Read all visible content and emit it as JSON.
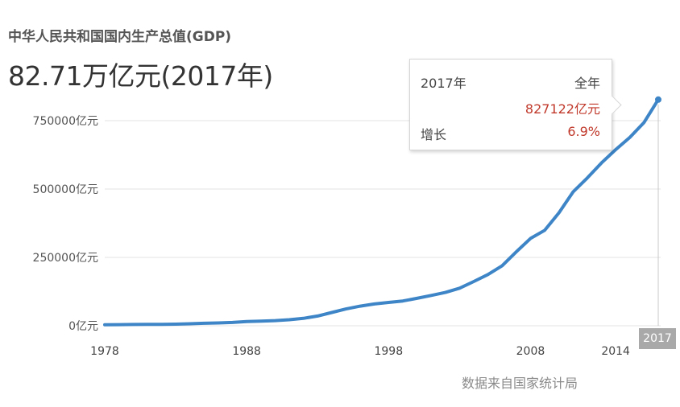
{
  "header": {
    "subtitle": "中华人民共和国国内生产总值(GDP)",
    "headline": "82.71万亿元(2017年)"
  },
  "tooltip": {
    "year": "2017年",
    "period": "全年",
    "value": "827122亿元",
    "growth_label": "增长",
    "growth": "6.9%"
  },
  "highlight_year": "2017",
  "source": "数据来自国家统计局",
  "colors": {
    "line": "#3d85c6",
    "grid": "#e3e3e3",
    "highlight_value": "#c0392b",
    "badge": "#a9a9a9"
  },
  "chart_data": {
    "type": "line",
    "title": "中华人民共和国国内生产总值(GDP)",
    "xlabel": "",
    "ylabel": "",
    "y_unit": "亿元",
    "ylim": [
      0,
      750000
    ],
    "yticks": [
      0,
      250000,
      500000,
      750000
    ],
    "ytick_labels": [
      "0亿元",
      "250000亿元",
      "500000亿元",
      "750000亿元"
    ],
    "xlim": [
      1978,
      2017
    ],
    "xticks": [
      1978,
      1988,
      1998,
      2008,
      2014
    ],
    "grid": true,
    "legend": "none",
    "series": [
      {
        "x": [
          1978,
          1979,
          1980,
          1981,
          1982,
          1983,
          1984,
          1985,
          1986,
          1987,
          1988,
          1989,
          1990,
          1991,
          1992,
          1993,
          1994,
          1995,
          1996,
          1997,
          1998,
          1999,
          2000,
          2001,
          2002,
          2003,
          2004,
          2005,
          2006,
          2007,
          2008,
          2009,
          2010,
          2011,
          2012,
          2013,
          2014,
          2015,
          2016,
          2017
        ],
        "y": [
          3679,
          4101,
          4588,
          4936,
          5373,
          6021,
          7279,
          9099,
          10376,
          12175,
          15180,
          17180,
          18873,
          22006,
          27195,
          35673,
          48638,
          61340,
          71814,
          79715,
          85196,
          90564,
          100280,
          110863,
          121717,
          137422,
          161840,
          187319,
          219439,
          270232,
          319516,
          349081,
          413030,
          489301,
          540367,
          595244,
          643974,
          689052,
          743586,
          827122
        ]
      }
    ]
  }
}
